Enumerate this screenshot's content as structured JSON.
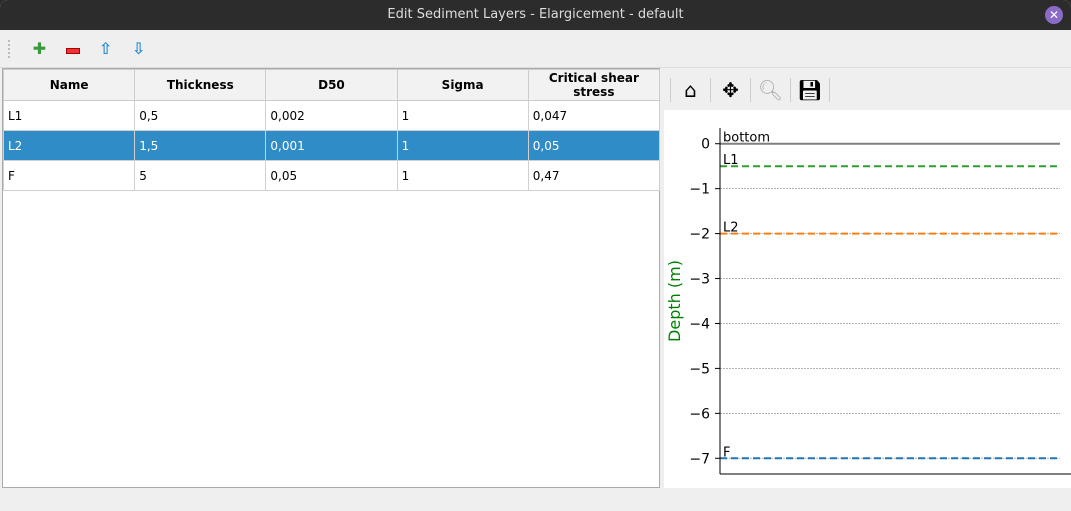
{
  "window": {
    "title": "Edit Sediment Layers - Elargicement - default"
  },
  "toolbar": {
    "icons": [
      "add-icon",
      "remove-icon",
      "move-up-icon",
      "move-down-icon"
    ]
  },
  "table": {
    "columns": [
      "Name",
      "Thickness",
      "D50",
      "Sigma",
      "Critical shear stress"
    ],
    "rows": [
      [
        "L1",
        "0,5",
        "0,002",
        "1",
        "0,047"
      ],
      [
        "L2",
        "1,5",
        "0,001",
        "1",
        "0,05"
      ],
      [
        "F",
        "5",
        "0,05",
        "1",
        "0,47"
      ]
    ],
    "selected_row": 1
  },
  "plot_toolbar": {
    "icons": [
      "home-icon",
      "pan-icon",
      "zoom-icon",
      "save-icon"
    ]
  },
  "chart_data": {
    "type": "line",
    "ylabel": "Depth (m)",
    "ylim": [
      -7.35,
      0.35
    ],
    "yticks": [
      "0",
      "−1",
      "−2",
      "−3",
      "−4",
      "−5",
      "−6",
      "−7"
    ],
    "grid": true,
    "lines": [
      {
        "label": "bottom",
        "y": 0,
        "color": "#808080",
        "style": "solid"
      },
      {
        "label": "L1",
        "y": -0.5,
        "color": "#2ca02c",
        "style": "dashed"
      },
      {
        "label": "L2",
        "y": -2,
        "color": "#ff7f0e",
        "style": "dashed"
      },
      {
        "label": "F",
        "y": -7,
        "color": "#1f77b4",
        "style": "dashed"
      }
    ]
  }
}
